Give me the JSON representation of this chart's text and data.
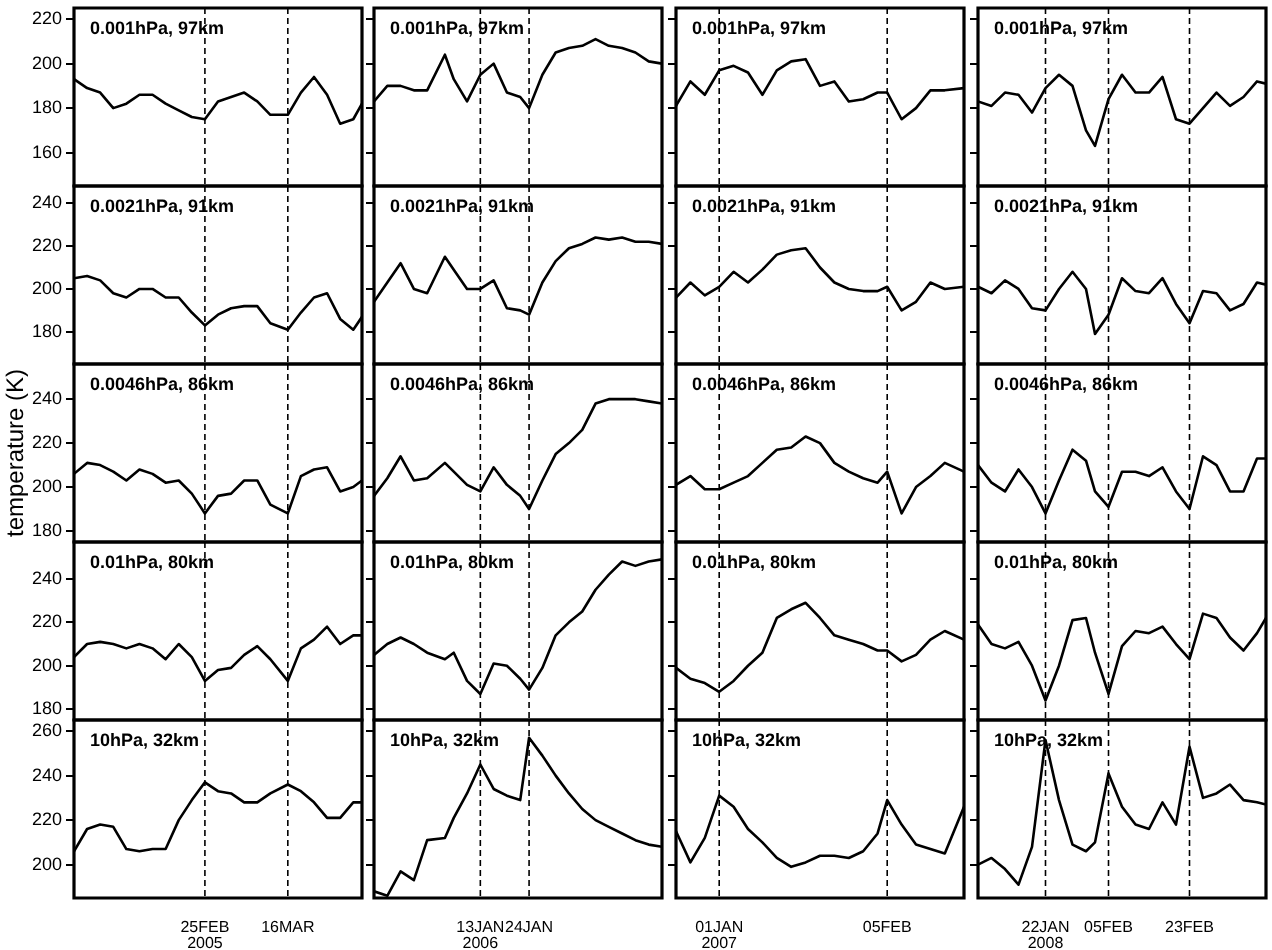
{
  "chart_data": [
    {
      "type": "line",
      "annotations": [
        "0.001hPa, 97km"
      ],
      "color": "#000000",
      "x": [
        "2005-01-26",
        "2005-01-29",
        "2005-02-01",
        "2005-02-04",
        "2005-02-07",
        "2005-02-10",
        "2005-02-13",
        "2005-02-16",
        "2005-02-19",
        "2005-02-22",
        "2005-02-25",
        "2005-02-28",
        "2005-03-03",
        "2005-03-06",
        "2005-03-09",
        "2005-03-12",
        "2005-03-16",
        "2005-03-19",
        "2005-03-22",
        "2005-03-25",
        "2005-03-28",
        "2005-03-31",
        "2005-04-02"
      ],
      "values": [
        193,
        189,
        187,
        180,
        182,
        186,
        186,
        182,
        179,
        176,
        175,
        183,
        185,
        187,
        183,
        177,
        177,
        187,
        194,
        186,
        173,
        175,
        182
      ],
      "xlim": [
        "2005-01-26",
        "2005-04-02"
      ],
      "ylim": [
        145,
        225
      ],
      "yticks": [
        160,
        180,
        200,
        220
      ],
      "tick_labels": "y",
      "ref_lines": [
        {
          "axis": "x",
          "value": "2005-02-25",
          "line_style": "dashed"
        },
        {
          "axis": "x",
          "value": "2005-03-16",
          "line_style": "dashed"
        }
      ]
    },
    {
      "type": "line",
      "annotations": [
        "0.001hPa, 97km"
      ],
      "color": "#000000",
      "x": [
        "2005-12-20",
        "2005-12-23",
        "2005-12-26",
        "2005-12-29",
        "2006-01-01",
        "2006-01-05",
        "2006-01-07",
        "2006-01-10",
        "2006-01-13",
        "2006-01-16",
        "2006-01-19",
        "2006-01-22",
        "2006-01-24",
        "2006-01-27",
        "2006-01-30",
        "2006-02-02",
        "2006-02-05",
        "2006-02-08",
        "2006-02-11",
        "2006-02-14",
        "2006-02-17",
        "2006-02-20",
        "2006-02-23"
      ],
      "values": [
        183,
        190,
        190,
        188,
        188,
        204,
        193,
        183,
        195,
        200,
        187,
        185,
        180,
        195,
        205,
        207,
        208,
        211,
        208,
        207,
        205,
        201,
        200
      ],
      "xlim": [
        "2005-12-20",
        "2006-02-23"
      ],
      "ylim": [
        145,
        225
      ],
      "yticks": [
        160,
        180,
        200,
        220
      ],
      "tick_labels": false,
      "ref_lines": [
        {
          "axis": "x",
          "value": "2006-01-13",
          "line_style": "dashed"
        },
        {
          "axis": "x",
          "value": "2006-01-24",
          "line_style": "dashed"
        }
      ]
    },
    {
      "type": "line",
      "annotations": [
        "0.001hPa, 97km"
      ],
      "color": "#000000",
      "x": [
        "2006-12-23",
        "2006-12-26",
        "2006-12-29",
        "2007-01-01",
        "2007-01-04",
        "2007-01-07",
        "2007-01-10",
        "2007-01-13",
        "2007-01-16",
        "2007-01-19",
        "2007-01-22",
        "2007-01-25",
        "2007-01-28",
        "2007-01-31",
        "2007-02-03",
        "2007-02-05",
        "2007-02-08",
        "2007-02-11",
        "2007-02-14",
        "2007-02-17",
        "2007-02-21"
      ],
      "values": [
        181,
        192,
        186,
        197,
        199,
        196,
        186,
        197,
        201,
        202,
        190,
        192,
        183,
        184,
        187,
        187,
        175,
        180,
        188,
        188,
        189
      ],
      "xlim": [
        "2006-12-23",
        "2007-02-21"
      ],
      "ylim": [
        145,
        225
      ],
      "yticks": [
        160,
        180,
        200,
        220
      ],
      "tick_labels": false,
      "ref_lines": [
        {
          "axis": "x",
          "value": "2007-01-01",
          "line_style": "dashed"
        },
        {
          "axis": "x",
          "value": "2007-02-05",
          "line_style": "dashed"
        }
      ]
    },
    {
      "type": "line",
      "annotations": [
        "0.001hPa, 97km"
      ],
      "color": "#000000",
      "x": [
        "2008-01-07",
        "2008-01-10",
        "2008-01-13",
        "2008-01-16",
        "2008-01-19",
        "2008-01-22",
        "2008-01-25",
        "2008-01-28",
        "2008-01-31",
        "2008-02-02",
        "2008-02-05",
        "2008-02-08",
        "2008-02-11",
        "2008-02-14",
        "2008-02-17",
        "2008-02-20",
        "2008-02-23",
        "2008-02-26",
        "2008-02-29",
        "2008-03-03",
        "2008-03-06",
        "2008-03-09",
        "2008-03-11"
      ],
      "values": [
        183,
        181,
        187,
        186,
        178,
        189,
        195,
        190,
        170,
        163,
        184,
        195,
        187,
        187,
        194,
        175,
        173,
        180,
        187,
        181,
        185,
        192,
        191
      ],
      "xlim": [
        "2008-01-07",
        "2008-03-11"
      ],
      "ylim": [
        145,
        225
      ],
      "yticks": [
        160,
        180,
        200,
        220
      ],
      "tick_labels": false,
      "ref_lines": [
        {
          "axis": "x",
          "value": "2008-01-22",
          "line_style": "dashed"
        },
        {
          "axis": "x",
          "value": "2008-02-05",
          "line_style": "dashed"
        },
        {
          "axis": "x",
          "value": "2008-02-23",
          "line_style": "dashed"
        }
      ]
    },
    {
      "type": "line",
      "annotations": [
        "0.0021hPa, 91km"
      ],
      "color": "#000000",
      "x": [
        "2005-01-26",
        "2005-01-29",
        "2005-02-01",
        "2005-02-04",
        "2005-02-07",
        "2005-02-10",
        "2005-02-13",
        "2005-02-16",
        "2005-02-19",
        "2005-02-22",
        "2005-02-25",
        "2005-02-28",
        "2005-03-03",
        "2005-03-06",
        "2005-03-09",
        "2005-03-12",
        "2005-03-16",
        "2005-03-19",
        "2005-03-22",
        "2005-03-25",
        "2005-03-28",
        "2005-03-31",
        "2005-04-02"
      ],
      "values": [
        205,
        206,
        204,
        198,
        196,
        200,
        200,
        196,
        196,
        189,
        183,
        188,
        191,
        192,
        192,
        184,
        181,
        189,
        196,
        198,
        186,
        181,
        187
      ],
      "xlim": [
        "2005-01-26",
        "2005-04-02"
      ],
      "ylim": [
        165,
        248
      ],
      "yticks": [
        180,
        200,
        220,
        240
      ],
      "tick_labels": "y",
      "ref_lines": [
        {
          "axis": "x",
          "value": "2005-02-25",
          "line_style": "dashed"
        },
        {
          "axis": "x",
          "value": "2005-03-16",
          "line_style": "dashed"
        }
      ]
    },
    {
      "type": "line",
      "annotations": [
        "0.0021hPa, 91km"
      ],
      "color": "#000000",
      "x": [
        "2005-12-20",
        "2005-12-23",
        "2005-12-26",
        "2005-12-29",
        "2006-01-01",
        "2006-01-05",
        "2006-01-07",
        "2006-01-10",
        "2006-01-13",
        "2006-01-16",
        "2006-01-19",
        "2006-01-22",
        "2006-01-24",
        "2006-01-27",
        "2006-01-30",
        "2006-02-02",
        "2006-02-05",
        "2006-02-08",
        "2006-02-11",
        "2006-02-14",
        "2006-02-17",
        "2006-02-20",
        "2006-02-23"
      ],
      "values": [
        194,
        203,
        212,
        200,
        198,
        215,
        209,
        200,
        200,
        204,
        191,
        190,
        188,
        203,
        213,
        219,
        221,
        224,
        223,
        224,
        222,
        222,
        221
      ],
      "xlim": [
        "2005-12-20",
        "2006-02-23"
      ],
      "ylim": [
        165,
        248
      ],
      "yticks": [
        180,
        200,
        220,
        240
      ],
      "tick_labels": false,
      "ref_lines": [
        {
          "axis": "x",
          "value": "2006-01-13",
          "line_style": "dashed"
        },
        {
          "axis": "x",
          "value": "2006-01-24",
          "line_style": "dashed"
        }
      ]
    },
    {
      "type": "line",
      "annotations": [
        "0.0021hPa, 91km"
      ],
      "color": "#000000",
      "x": [
        "2006-12-23",
        "2006-12-26",
        "2006-12-29",
        "2007-01-01",
        "2007-01-04",
        "2007-01-07",
        "2007-01-10",
        "2007-01-13",
        "2007-01-16",
        "2007-01-19",
        "2007-01-22",
        "2007-01-25",
        "2007-01-28",
        "2007-01-31",
        "2007-02-03",
        "2007-02-05",
        "2007-02-08",
        "2007-02-11",
        "2007-02-14",
        "2007-02-17",
        "2007-02-21"
      ],
      "values": [
        196,
        203,
        197,
        201,
        208,
        203,
        209,
        216,
        218,
        219,
        210,
        203,
        200,
        199,
        199,
        201,
        190,
        194,
        203,
        200,
        201
      ],
      "xlim": [
        "2006-12-23",
        "2007-02-21"
      ],
      "ylim": [
        165,
        248
      ],
      "yticks": [
        180,
        200,
        220,
        240
      ],
      "tick_labels": false,
      "ref_lines": [
        {
          "axis": "x",
          "value": "2007-01-01",
          "line_style": "dashed"
        },
        {
          "axis": "x",
          "value": "2007-02-05",
          "line_style": "dashed"
        }
      ]
    },
    {
      "type": "line",
      "annotations": [
        "0.0021hPa, 91km"
      ],
      "color": "#000000",
      "x": [
        "2008-01-07",
        "2008-01-10",
        "2008-01-13",
        "2008-01-16",
        "2008-01-19",
        "2008-01-22",
        "2008-01-25",
        "2008-01-28",
        "2008-01-31",
        "2008-02-02",
        "2008-02-05",
        "2008-02-08",
        "2008-02-11",
        "2008-02-14",
        "2008-02-17",
        "2008-02-20",
        "2008-02-23",
        "2008-02-26",
        "2008-02-29",
        "2008-03-03",
        "2008-03-06",
        "2008-03-09",
        "2008-03-11"
      ],
      "values": [
        201,
        198,
        204,
        200,
        191,
        190,
        200,
        208,
        200,
        179,
        188,
        205,
        199,
        198,
        205,
        193,
        184,
        199,
        198,
        190,
        193,
        203,
        202
      ],
      "xlim": [
        "2008-01-07",
        "2008-03-11"
      ],
      "ylim": [
        165,
        248
      ],
      "yticks": [
        180,
        200,
        220,
        240
      ],
      "tick_labels": false,
      "ref_lines": [
        {
          "axis": "x",
          "value": "2008-01-22",
          "line_style": "dashed"
        },
        {
          "axis": "x",
          "value": "2008-02-05",
          "line_style": "dashed"
        },
        {
          "axis": "x",
          "value": "2008-02-23",
          "line_style": "dashed"
        }
      ]
    },
    {
      "type": "line",
      "ylabel": "temperature (K)",
      "annotations": [
        "0.0046hPa, 86km"
      ],
      "color": "#000000",
      "x": [
        "2005-01-26",
        "2005-01-29",
        "2005-02-01",
        "2005-02-04",
        "2005-02-07",
        "2005-02-10",
        "2005-02-13",
        "2005-02-16",
        "2005-02-19",
        "2005-02-22",
        "2005-02-25",
        "2005-02-28",
        "2005-03-03",
        "2005-03-06",
        "2005-03-09",
        "2005-03-12",
        "2005-03-16",
        "2005-03-19",
        "2005-03-22",
        "2005-03-25",
        "2005-03-28",
        "2005-03-31",
        "2005-04-02"
      ],
      "values": [
        206,
        211,
        210,
        207,
        203,
        208,
        206,
        202,
        203,
        197,
        188,
        196,
        197,
        203,
        203,
        192,
        188,
        205,
        208,
        209,
        198,
        200,
        203
      ],
      "xlim": [
        "2005-01-26",
        "2005-04-02"
      ],
      "ylim": [
        175,
        256
      ],
      "yticks": [
        180,
        200,
        220,
        240
      ],
      "tick_labels": "y",
      "ref_lines": [
        {
          "axis": "x",
          "value": "2005-02-25",
          "line_style": "dashed"
        },
        {
          "axis": "x",
          "value": "2005-03-16",
          "line_style": "dashed"
        }
      ]
    },
    {
      "type": "line",
      "annotations": [
        "0.0046hPa, 86km"
      ],
      "color": "#000000",
      "x": [
        "2005-12-20",
        "2005-12-23",
        "2005-12-26",
        "2005-12-29",
        "2006-01-01",
        "2006-01-05",
        "2006-01-07",
        "2006-01-10",
        "2006-01-13",
        "2006-01-16",
        "2006-01-19",
        "2006-01-22",
        "2006-01-24",
        "2006-01-27",
        "2006-01-30",
        "2006-02-02",
        "2006-02-05",
        "2006-02-08",
        "2006-02-11",
        "2006-02-14",
        "2006-02-17",
        "2006-02-20",
        "2006-02-23"
      ],
      "values": [
        196,
        204,
        214,
        203,
        204,
        211,
        207,
        201,
        198,
        209,
        201,
        196,
        190,
        203,
        215,
        220,
        226,
        238,
        240,
        240,
        240,
        239,
        238
      ],
      "xlim": [
        "2005-12-20",
        "2006-02-23"
      ],
      "ylim": [
        175,
        256
      ],
      "yticks": [
        180,
        200,
        220,
        240
      ],
      "tick_labels": false,
      "ref_lines": [
        {
          "axis": "x",
          "value": "2006-01-13",
          "line_style": "dashed"
        },
        {
          "axis": "x",
          "value": "2006-01-24",
          "line_style": "dashed"
        }
      ]
    },
    {
      "type": "line",
      "annotations": [
        "0.0046hPa, 86km"
      ],
      "color": "#000000",
      "x": [
        "2006-12-23",
        "2006-12-26",
        "2006-12-29",
        "2007-01-01",
        "2007-01-04",
        "2007-01-07",
        "2007-01-10",
        "2007-01-13",
        "2007-01-16",
        "2007-01-19",
        "2007-01-22",
        "2007-01-25",
        "2007-01-28",
        "2007-01-31",
        "2007-02-03",
        "2007-02-05",
        "2007-02-08",
        "2007-02-11",
        "2007-02-14",
        "2007-02-17",
        "2007-02-21"
      ],
      "values": [
        201,
        205,
        199,
        199,
        202,
        205,
        211,
        217,
        218,
        223,
        220,
        211,
        207,
        204,
        202,
        207,
        188,
        200,
        205,
        211,
        207
      ],
      "xlim": [
        "2006-12-23",
        "2007-02-21"
      ],
      "ylim": [
        175,
        256
      ],
      "yticks": [
        180,
        200,
        220,
        240
      ],
      "tick_labels": false,
      "ref_lines": [
        {
          "axis": "x",
          "value": "2007-01-01",
          "line_style": "dashed"
        },
        {
          "axis": "x",
          "value": "2007-02-05",
          "line_style": "dashed"
        }
      ]
    },
    {
      "type": "line",
      "annotations": [
        "0.0046hPa, 86km"
      ],
      "color": "#000000",
      "x": [
        "2008-01-07",
        "2008-01-10",
        "2008-01-13",
        "2008-01-16",
        "2008-01-19",
        "2008-01-22",
        "2008-01-25",
        "2008-01-28",
        "2008-01-31",
        "2008-02-02",
        "2008-02-05",
        "2008-02-08",
        "2008-02-11",
        "2008-02-14",
        "2008-02-17",
        "2008-02-20",
        "2008-02-23",
        "2008-02-26",
        "2008-02-29",
        "2008-03-03",
        "2008-03-06",
        "2008-03-09",
        "2008-03-11"
      ],
      "values": [
        210,
        202,
        198,
        208,
        200,
        188,
        203,
        217,
        212,
        198,
        191,
        207,
        207,
        205,
        209,
        198,
        190,
        214,
        210,
        198,
        198,
        213,
        213
      ],
      "xlim": [
        "2008-01-07",
        "2008-03-11"
      ],
      "ylim": [
        175,
        256
      ],
      "yticks": [
        180,
        200,
        220,
        240
      ],
      "tick_labels": false,
      "ref_lines": [
        {
          "axis": "x",
          "value": "2008-01-22",
          "line_style": "dashed"
        },
        {
          "axis": "x",
          "value": "2008-02-05",
          "line_style": "dashed"
        },
        {
          "axis": "x",
          "value": "2008-02-23",
          "line_style": "dashed"
        }
      ]
    },
    {
      "type": "line",
      "annotations": [
        "0.01hPa, 80km"
      ],
      "color": "#000000",
      "x": [
        "2005-01-26",
        "2005-01-29",
        "2005-02-01",
        "2005-02-04",
        "2005-02-07",
        "2005-02-10",
        "2005-02-13",
        "2005-02-16",
        "2005-02-19",
        "2005-02-22",
        "2005-02-25",
        "2005-02-28",
        "2005-03-03",
        "2005-03-06",
        "2005-03-09",
        "2005-03-12",
        "2005-03-16",
        "2005-03-19",
        "2005-03-22",
        "2005-03-25",
        "2005-03-28",
        "2005-03-31",
        "2005-04-02"
      ],
      "values": [
        204,
        210,
        211,
        210,
        208,
        210,
        208,
        203,
        210,
        204,
        193,
        198,
        199,
        205,
        209,
        203,
        193,
        208,
        212,
        218,
        210,
        214,
        214
      ],
      "xlim": [
        "2005-01-26",
        "2005-04-02"
      ],
      "ylim": [
        175,
        257
      ],
      "yticks": [
        180,
        200,
        220,
        240
      ],
      "tick_labels": "y",
      "ref_lines": [
        {
          "axis": "x",
          "value": "2005-02-25",
          "line_style": "dashed"
        },
        {
          "axis": "x",
          "value": "2005-03-16",
          "line_style": "dashed"
        }
      ]
    },
    {
      "type": "line",
      "annotations": [
        "0.01hPa, 80km"
      ],
      "color": "#000000",
      "x": [
        "2005-12-20",
        "2005-12-23",
        "2005-12-26",
        "2005-12-29",
        "2006-01-01",
        "2006-01-05",
        "2006-01-07",
        "2006-01-10",
        "2006-01-13",
        "2006-01-16",
        "2006-01-19",
        "2006-01-22",
        "2006-01-24",
        "2006-01-27",
        "2006-01-30",
        "2006-02-02",
        "2006-02-05",
        "2006-02-08",
        "2006-02-11",
        "2006-02-14",
        "2006-02-17",
        "2006-02-20",
        "2006-02-23"
      ],
      "values": [
        205,
        210,
        213,
        210,
        206,
        203,
        206,
        193,
        187,
        201,
        200,
        194,
        189,
        199,
        214,
        220,
        225,
        235,
        242,
        248,
        246,
        248,
        249
      ],
      "xlim": [
        "2005-12-20",
        "2006-02-23"
      ],
      "ylim": [
        175,
        257
      ],
      "yticks": [
        180,
        200,
        220,
        240
      ],
      "tick_labels": false,
      "ref_lines": [
        {
          "axis": "x",
          "value": "2006-01-13",
          "line_style": "dashed"
        },
        {
          "axis": "x",
          "value": "2006-01-24",
          "line_style": "dashed"
        }
      ]
    },
    {
      "type": "line",
      "annotations": [
        "0.01hPa, 80km"
      ],
      "color": "#000000",
      "x": [
        "2006-12-23",
        "2006-12-26",
        "2006-12-29",
        "2007-01-01",
        "2007-01-04",
        "2007-01-07",
        "2007-01-10",
        "2007-01-13",
        "2007-01-16",
        "2007-01-19",
        "2007-01-22",
        "2007-01-25",
        "2007-01-28",
        "2007-01-31",
        "2007-02-03",
        "2007-02-05",
        "2007-02-08",
        "2007-02-11",
        "2007-02-14",
        "2007-02-17",
        "2007-02-21"
      ],
      "values": [
        199,
        194,
        192,
        188,
        193,
        200,
        206,
        222,
        226,
        229,
        222,
        214,
        212,
        210,
        207,
        207,
        202,
        205,
        212,
        216,
        212
      ],
      "xlim": [
        "2006-12-23",
        "2007-02-21"
      ],
      "ylim": [
        175,
        257
      ],
      "yticks": [
        180,
        200,
        220,
        240
      ],
      "tick_labels": false,
      "ref_lines": [
        {
          "axis": "x",
          "value": "2007-01-01",
          "line_style": "dashed"
        },
        {
          "axis": "x",
          "value": "2007-02-05",
          "line_style": "dashed"
        }
      ]
    },
    {
      "type": "line",
      "annotations": [
        "0.01hPa, 80km"
      ],
      "color": "#000000",
      "x": [
        "2008-01-07",
        "2008-01-10",
        "2008-01-13",
        "2008-01-16",
        "2008-01-19",
        "2008-01-22",
        "2008-01-25",
        "2008-01-28",
        "2008-01-31",
        "2008-02-02",
        "2008-02-05",
        "2008-02-08",
        "2008-02-11",
        "2008-02-14",
        "2008-02-17",
        "2008-02-20",
        "2008-02-23",
        "2008-02-26",
        "2008-02-29",
        "2008-03-03",
        "2008-03-06",
        "2008-03-09",
        "2008-03-11"
      ],
      "values": [
        219,
        210,
        208,
        211,
        200,
        184,
        200,
        221,
        222,
        206,
        187,
        209,
        216,
        215,
        218,
        210,
        203,
        224,
        222,
        213,
        207,
        215,
        222
      ],
      "xlim": [
        "2008-01-07",
        "2008-03-11"
      ],
      "ylim": [
        175,
        257
      ],
      "yticks": [
        180,
        200,
        220,
        240
      ],
      "tick_labels": false,
      "ref_lines": [
        {
          "axis": "x",
          "value": "2008-01-22",
          "line_style": "dashed"
        },
        {
          "axis": "x",
          "value": "2008-02-05",
          "line_style": "dashed"
        },
        {
          "axis": "x",
          "value": "2008-02-23",
          "line_style": "dashed"
        }
      ]
    },
    {
      "type": "line",
      "annotations": [
        "10hPa, 32km"
      ],
      "color": "#000000",
      "x": [
        "2005-01-26",
        "2005-01-29",
        "2005-02-01",
        "2005-02-04",
        "2005-02-07",
        "2005-02-10",
        "2005-02-13",
        "2005-02-16",
        "2005-02-19",
        "2005-02-22",
        "2005-02-25",
        "2005-02-28",
        "2005-03-03",
        "2005-03-06",
        "2005-03-09",
        "2005-03-12",
        "2005-03-16",
        "2005-03-19",
        "2005-03-22",
        "2005-03-25",
        "2005-03-28",
        "2005-03-31",
        "2005-04-02"
      ],
      "values": [
        206,
        216,
        218,
        217,
        207,
        206,
        207,
        207,
        220,
        229,
        237,
        233,
        232,
        228,
        228,
        232,
        236,
        233,
        228,
        221,
        221,
        228,
        228
      ],
      "xlim": [
        "2005-01-26",
        "2005-04-02"
      ],
      "ylim": [
        185,
        265
      ],
      "yticks": [
        200,
        220,
        240,
        260
      ],
      "xticks": [
        {
          "value": "2005-02-25",
          "label": "25FEB\n2005"
        },
        {
          "value": "2005-03-16",
          "label": "16MAR"
        }
      ],
      "ref_lines": [
        {
          "axis": "x",
          "value": "2005-02-25",
          "line_style": "dashed"
        },
        {
          "axis": "x",
          "value": "2005-03-16",
          "line_style": "dashed"
        }
      ]
    },
    {
      "type": "line",
      "annotations": [
        "10hPa, 32km"
      ],
      "color": "#000000",
      "x": [
        "2005-12-20",
        "2005-12-23",
        "2005-12-26",
        "2005-12-29",
        "2006-01-01",
        "2006-01-05",
        "2006-01-07",
        "2006-01-10",
        "2006-01-13",
        "2006-01-16",
        "2006-01-19",
        "2006-01-22",
        "2006-01-24",
        "2006-01-27",
        "2006-01-30",
        "2006-02-02",
        "2006-02-05",
        "2006-02-08",
        "2006-02-11",
        "2006-02-14",
        "2006-02-17",
        "2006-02-20",
        "2006-02-23"
      ],
      "values": [
        188,
        186,
        197,
        193,
        211,
        212,
        221,
        232,
        245,
        234,
        231,
        229,
        257,
        249,
        240,
        232,
        225,
        220,
        217,
        214,
        211,
        209,
        208
      ],
      "xlim": [
        "2005-12-20",
        "2006-02-23"
      ],
      "ylim": [
        185,
        265
      ],
      "yticks": [
        200,
        220,
        240,
        260
      ],
      "tick_labels": "x",
      "xticks": [
        {
          "value": "2006-01-13",
          "label": "13JAN\n2006"
        },
        {
          "value": "2006-01-24",
          "label": "24JAN"
        }
      ],
      "ref_lines": [
        {
          "axis": "x",
          "value": "2006-01-13",
          "line_style": "dashed"
        },
        {
          "axis": "x",
          "value": "2006-01-24",
          "line_style": "dashed"
        }
      ]
    },
    {
      "type": "line",
      "annotations": [
        "10hPa, 32km"
      ],
      "color": "#000000",
      "x": [
        "2006-12-23",
        "2006-12-26",
        "2006-12-29",
        "2007-01-01",
        "2007-01-04",
        "2007-01-07",
        "2007-01-10",
        "2007-01-13",
        "2007-01-16",
        "2007-01-19",
        "2007-01-22",
        "2007-01-25",
        "2007-01-28",
        "2007-01-31",
        "2007-02-03",
        "2007-02-05",
        "2007-02-08",
        "2007-02-11",
        "2007-02-14",
        "2007-02-17",
        "2007-02-21"
      ],
      "values": [
        215,
        201,
        212,
        231,
        226,
        216,
        210,
        203,
        199,
        201,
        204,
        204,
        203,
        206,
        214,
        229,
        218,
        209,
        207,
        205,
        226
      ],
      "xlim": [
        "2006-12-23",
        "2007-02-21"
      ],
      "ylim": [
        185,
        265
      ],
      "yticks": [
        200,
        220,
        240,
        260
      ],
      "tick_labels": "x",
      "xticks": [
        {
          "value": "2007-01-01",
          "label": "01JAN\n2007"
        },
        {
          "value": "2007-02-05",
          "label": "05FEB"
        }
      ],
      "ref_lines": [
        {
          "axis": "x",
          "value": "2007-01-01",
          "line_style": "dashed"
        },
        {
          "axis": "x",
          "value": "2007-02-05",
          "line_style": "dashed"
        }
      ]
    },
    {
      "type": "line",
      "annotations": [
        "10hPa, 32km"
      ],
      "color": "#000000",
      "x": [
        "2008-01-07",
        "2008-01-10",
        "2008-01-13",
        "2008-01-16",
        "2008-01-19",
        "2008-01-22",
        "2008-01-25",
        "2008-01-28",
        "2008-01-31",
        "2008-02-02",
        "2008-02-05",
        "2008-02-08",
        "2008-02-11",
        "2008-02-14",
        "2008-02-17",
        "2008-02-20",
        "2008-02-23",
        "2008-02-26",
        "2008-02-29",
        "2008-03-03",
        "2008-03-06",
        "2008-03-09",
        "2008-03-11"
      ],
      "values": [
        200,
        203,
        198,
        191,
        208,
        256,
        229,
        209,
        206,
        210,
        241,
        226,
        218,
        216,
        228,
        218,
        253,
        230,
        232,
        236,
        229,
        228,
        227
      ],
      "xlim": [
        "2008-01-07",
        "2008-03-11"
      ],
      "ylim": [
        185,
        265
      ],
      "yticks": [
        200,
        220,
        240,
        260
      ],
      "tick_labels": "x",
      "xticks": [
        {
          "value": "2008-01-22",
          "label": "22JAN\n2008"
        },
        {
          "value": "2008-02-05",
          "label": "05FEB"
        },
        {
          "value": "2008-02-23",
          "label": "23FEB"
        }
      ],
      "ref_lines": [
        {
          "axis": "x",
          "value": "2008-01-22",
          "line_style": "dashed"
        },
        {
          "axis": "x",
          "value": "2008-02-05",
          "line_style": "dashed"
        },
        {
          "axis": "x",
          "value": "2008-02-23",
          "line_style": "dashed"
        }
      ]
    }
  ]
}
